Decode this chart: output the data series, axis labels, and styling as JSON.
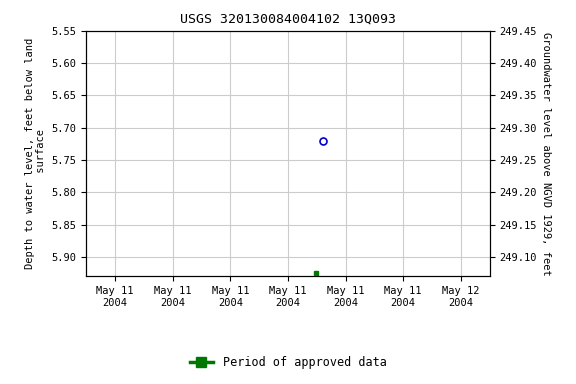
{
  "title": "USGS 320130084004102 13Q093",
  "ylabel_left": "Depth to water level, feet below land\n surface",
  "ylabel_right": "Groundwater level above NGVD 1929, feet",
  "ylim_left_top": 5.55,
  "ylim_left_bottom": 5.93,
  "ylim_right_top": 249.45,
  "ylim_right_bottom": 249.07,
  "yticks_left": [
    5.55,
    5.6,
    5.65,
    5.7,
    5.75,
    5.8,
    5.85,
    5.9
  ],
  "yticks_right": [
    249.45,
    249.4,
    249.35,
    249.3,
    249.25,
    249.2,
    249.15,
    249.1
  ],
  "xlim_min": -0.5,
  "xlim_max": 6.5,
  "xtick_labels": [
    "May 11\n2004",
    "May 11\n2004",
    "May 11\n2004",
    "May 11\n2004",
    "May 11\n2004",
    "May 11\n2004",
    "May 12\n2004"
  ],
  "xtick_positions": [
    0,
    1,
    2,
    3,
    4,
    5,
    6
  ],
  "blue_point_x": 3.6,
  "blue_point_y": 5.72,
  "green_point_x": 3.48,
  "green_point_y": 5.925,
  "blue_color": "#0000CC",
  "green_color": "#007700",
  "background_color": "#FFFFFF",
  "grid_color": "#CCCCCC",
  "legend_label": "Period of approved data",
  "font_family": "monospace",
  "title_fontsize": 9.5,
  "tick_fontsize": 7.5,
  "label_fontsize": 7.5
}
